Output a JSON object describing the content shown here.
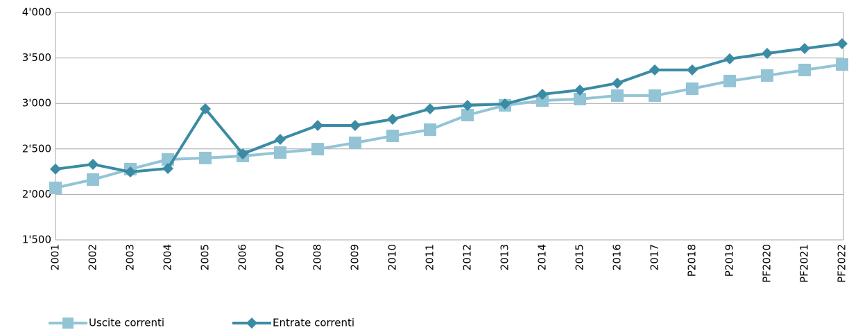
{
  "chart_data": {
    "type": "line",
    "categories": [
      "2001",
      "2002",
      "2003",
      "2004",
      "2005",
      "2006",
      "2007",
      "2008",
      "2009",
      "2010",
      "2011",
      "2012",
      "2013",
      "2014",
      "2015",
      "2016",
      "2017",
      "P2018",
      "P2019",
      "PF2020",
      "PF2021",
      "PF2022"
    ],
    "series": [
      {
        "name": "Uscite correnti",
        "color": "#93c4d6",
        "marker": "square",
        "values": [
          2072,
          2163,
          2278,
          2384,
          2400,
          2422,
          2460,
          2498,
          2567,
          2643,
          2712,
          2872,
          2979,
          3032,
          3048,
          3086,
          3086,
          3162,
          3246,
          3307,
          3368,
          3428
        ]
      },
      {
        "name": "Entrate correnti",
        "color": "#3a8ba3",
        "marker": "diamond",
        "values": [
          2278,
          2331,
          2247,
          2285,
          2941,
          2445,
          2605,
          2758,
          2758,
          2826,
          2941,
          2979,
          2994,
          3101,
          3147,
          3223,
          3368,
          3368,
          3490,
          3550,
          3604,
          3657
        ]
      }
    ],
    "ylim": [
      1500,
      4000
    ],
    "yticks": [
      {
        "value": 1500,
        "label": "1'500"
      },
      {
        "value": 2000,
        "label": "2'000"
      },
      {
        "value": 2500,
        "label": "2'500"
      },
      {
        "value": 3000,
        "label": "3'000"
      },
      {
        "value": 3500,
        "label": "3'500"
      },
      {
        "value": 4000,
        "label": "4'000"
      }
    ],
    "grid": true,
    "legend": "bottom-left"
  }
}
